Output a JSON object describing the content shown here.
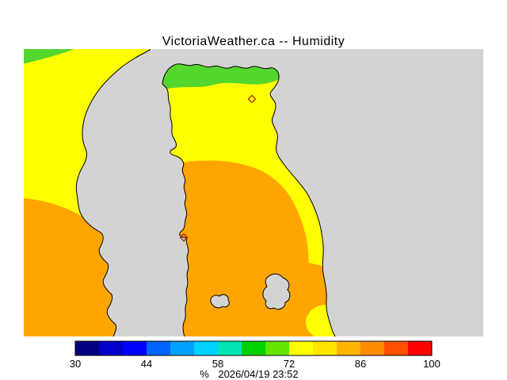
{
  "title": "VictoriaWeather.ca -- Humidity",
  "colors": {
    "page_background": "#ffffff",
    "water": "#d3d3d3",
    "coastline": "#000000",
    "humidity_green": "#54d62e",
    "humidity_yellow": "#ffff00",
    "humidity_orange": "#ffa500",
    "marker_outline": "#993300",
    "text": "#000000"
  },
  "icons": {
    "station_marker": "diamond-outline"
  },
  "colorbar": {
    "units_label": "%",
    "timestamp": "2026/04/19 23:52",
    "min": 30,
    "max": 100,
    "ticks": [
      "30",
      "44",
      "58",
      "72",
      "86",
      "100"
    ],
    "segment_colors": [
      "#000080",
      "#0000c8",
      "#0000ff",
      "#0064ff",
      "#00a0ff",
      "#00d2ff",
      "#00e6b4",
      "#00d200",
      "#64e600",
      "#ffff00",
      "#ffe600",
      "#ffb400",
      "#ff8c00",
      "#ff5000",
      "#ff0000"
    ]
  }
}
